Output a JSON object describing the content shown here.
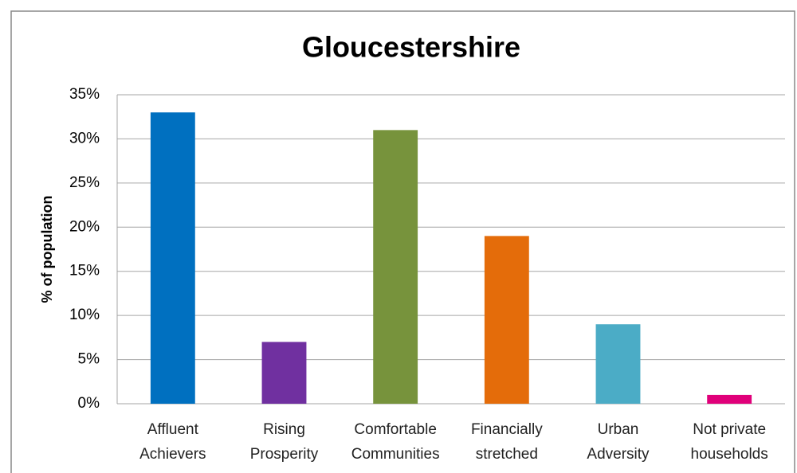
{
  "chart_data": {
    "type": "bar",
    "title": "Gloucestershire",
    "y_label": "% of population",
    "categories": [
      "Affluent Achievers",
      "Rising Prosperity",
      "Comfortable Communities",
      "Financially stretched",
      "Urban Adversity",
      "Not private households"
    ],
    "values": [
      33,
      7,
      31,
      19,
      9,
      1
    ],
    "colors": [
      "#0070c0",
      "#7030a0",
      "#77933c",
      "#e46c0a",
      "#4bacc6",
      "#e0007a"
    ],
    "ylim": [
      0,
      35
    ],
    "yticks": [
      {
        "value": 0,
        "label": "0%"
      },
      {
        "value": 5,
        "label": "5%"
      },
      {
        "value": 10,
        "label": "10%"
      },
      {
        "value": 15,
        "label": "15%"
      },
      {
        "value": 20,
        "label": "20%"
      },
      {
        "value": 25,
        "label": "25%"
      },
      {
        "value": 30,
        "label": "30%"
      },
      {
        "value": 35,
        "label": "35%"
      }
    ],
    "grid": true
  }
}
